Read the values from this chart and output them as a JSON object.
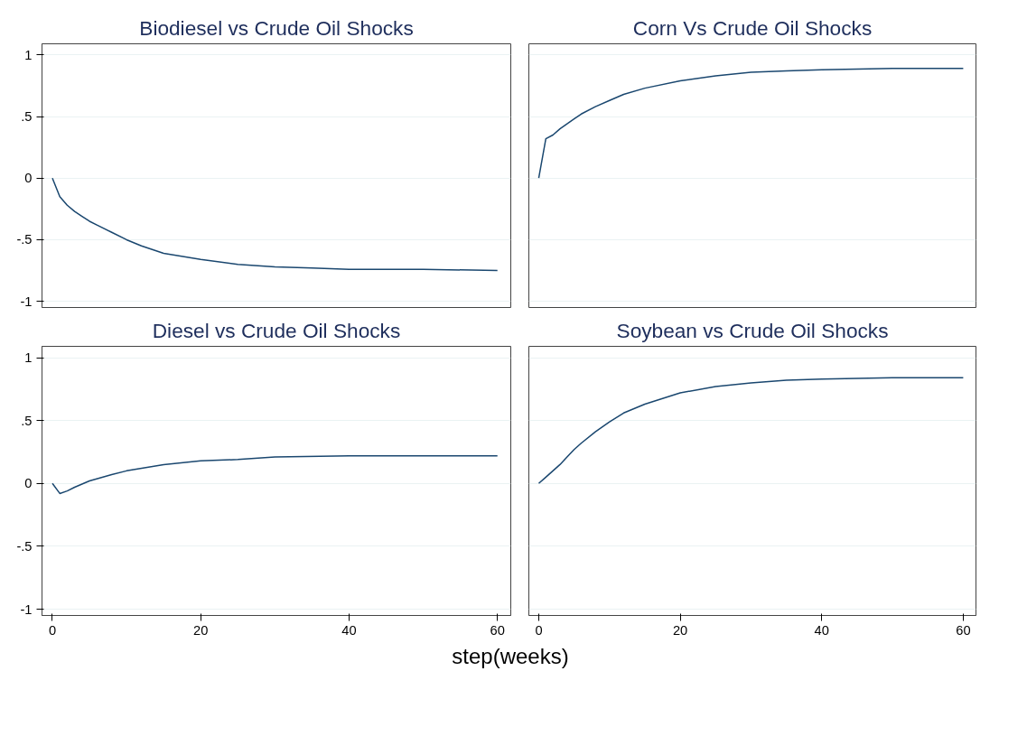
{
  "chart_data": [
    {
      "type": "line",
      "title": "Biodiesel vs Crude Oil Shocks",
      "x": [
        0,
        1,
        2,
        3,
        4,
        5,
        6,
        8,
        10,
        12,
        15,
        20,
        25,
        30,
        35,
        40,
        50,
        60
      ],
      "series": [
        {
          "color": "#1a476f",
          "values": [
            0,
            -0.15,
            -0.22,
            -0.27,
            -0.31,
            -0.35,
            -0.38,
            -0.44,
            -0.5,
            -0.55,
            -0.61,
            -0.66,
            -0.7,
            -0.72,
            -0.73,
            -0.74,
            -0.74,
            -0.75
          ]
        }
      ],
      "xlim": [
        -1.4,
        61.8
      ],
      "ylim": [
        -1.05,
        1.09
      ],
      "xticks": [
        0,
        20,
        40,
        60
      ],
      "yticks": [
        {
          "value": -1,
          "label": "-1"
        },
        {
          "value": -0.5,
          "label": "-.5"
        },
        0,
        {
          "value": 0.5,
          "label": ".5"
        },
        1
      ],
      "grid": "y",
      "tick_labels": "y"
    },
    {
      "type": "line",
      "title": "Corn Vs Crude Oil Shocks",
      "x": [
        0,
        1,
        2,
        3,
        4,
        5,
        6,
        8,
        10,
        12,
        15,
        20,
        25,
        30,
        35,
        40,
        50,
        60
      ],
      "series": [
        {
          "color": "#1a476f",
          "values": [
            0,
            0.32,
            0.35,
            0.4,
            0.44,
            0.48,
            0.52,
            0.58,
            0.63,
            0.68,
            0.73,
            0.79,
            0.83,
            0.86,
            0.87,
            0.88,
            0.89,
            0.89
          ]
        }
      ],
      "xlim": [
        -1.4,
        61.8
      ],
      "ylim": [
        -1.05,
        1.09
      ],
      "xticks": [
        0,
        20,
        40,
        60
      ],
      "yticks": [
        -1,
        -0.5,
        0,
        0.5,
        1
      ],
      "grid": "y",
      "tick_labels": false
    },
    {
      "type": "line",
      "title": "Diesel vs Crude Oil Shocks",
      "xlabel": "step(weeks)",
      "x": [
        0,
        1,
        2,
        3,
        5,
        8,
        10,
        15,
        20,
        25,
        30,
        40,
        50,
        60
      ],
      "series": [
        {
          "color": "#1a476f",
          "values": [
            0,
            -0.08,
            -0.06,
            -0.03,
            0.02,
            0.07,
            0.1,
            0.15,
            0.18,
            0.19,
            0.21,
            0.22,
            0.22,
            0.22
          ]
        }
      ],
      "xlim": [
        -1.4,
        61.8
      ],
      "ylim": [
        -1.05,
        1.09
      ],
      "xticks": [
        0,
        20,
        40,
        60
      ],
      "yticks": [
        {
          "value": -1,
          "label": "-1"
        },
        {
          "value": -0.5,
          "label": "-.5"
        },
        0,
        {
          "value": 0.5,
          "label": ".5"
        },
        1
      ],
      "grid": "y"
    },
    {
      "type": "line",
      "title": "Soybean vs Crude Oil Shocks",
      "x": [
        0,
        1,
        2,
        3,
        4,
        5,
        6,
        8,
        10,
        12,
        15,
        20,
        25,
        30,
        35,
        40,
        50,
        60
      ],
      "series": [
        {
          "color": "#1a476f",
          "values": [
            0,
            0.05,
            0.1,
            0.15,
            0.21,
            0.27,
            0.32,
            0.41,
            0.49,
            0.56,
            0.63,
            0.72,
            0.77,
            0.8,
            0.82,
            0.83,
            0.84,
            0.84
          ]
        }
      ],
      "xlim": [
        -1.4,
        61.8
      ],
      "ylim": [
        -1.05,
        1.09
      ],
      "xticks": [
        0,
        20,
        40,
        60
      ],
      "yticks": [
        -1,
        -0.5,
        0,
        0.5,
        1
      ],
      "grid": "y",
      "tick_labels": "x"
    }
  ]
}
